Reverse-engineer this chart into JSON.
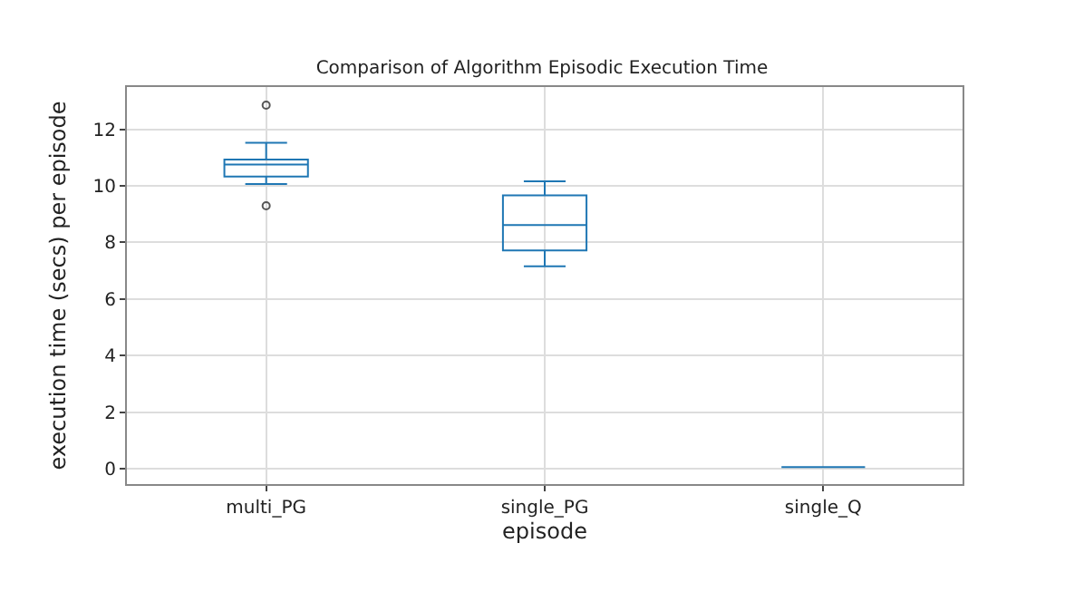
{
  "chart_data": {
    "type": "box",
    "title": "Comparison of Algorithm Episodic Execution Time",
    "xlabel": "episode",
    "ylabel": "execution time (secs) per episode",
    "categories": [
      "multi_PG",
      "single_PG",
      "single_Q"
    ],
    "color": "#1f77b4",
    "boxes": [
      {
        "low": 10.07,
        "q1": 10.33,
        "median": 10.76,
        "q3": 10.93,
        "high": 11.53,
        "outliers": [
          12.86,
          9.3
        ]
      },
      {
        "low": 7.16,
        "q1": 7.72,
        "median": 8.62,
        "q3": 9.67,
        "high": 10.16
      },
      {
        "low": 0.05,
        "q1": 0.05,
        "median": 0.05,
        "q3": 0.05,
        "high": 0.05
      }
    ],
    "ylim": [
      -0.55,
      13.5
    ],
    "yticks": [
      0,
      2,
      4,
      6,
      8,
      10,
      12
    ],
    "grid": true
  }
}
